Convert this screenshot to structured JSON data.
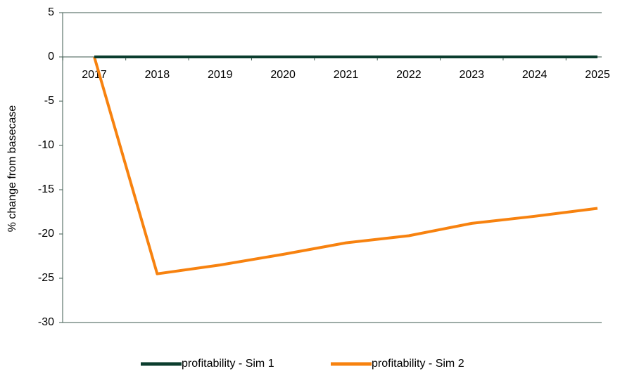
{
  "chart_data": {
    "type": "line",
    "y_label": "% change from basecase",
    "categories": [
      "2017",
      "2018",
      "2019",
      "2020",
      "2021",
      "2022",
      "2023",
      "2024",
      "2025"
    ],
    "series": [
      {
        "name": "profitability  - Sim 1",
        "color": "#0b3d2e",
        "values": [
          0,
          0,
          0,
          0,
          0,
          0,
          0,
          0,
          0
        ]
      },
      {
        "name": "profitability  - Sim 2",
        "color": "#f7820f",
        "values": [
          0,
          -24.5,
          -23.5,
          -22.3,
          -21.0,
          -20.2,
          -18.8,
          -18.0,
          -17.1
        ]
      }
    ],
    "ylim": [
      -30,
      5
    ],
    "yticks": [
      -30,
      -25,
      -20,
      -15,
      -10,
      -5,
      0,
      5
    ],
    "legend": "bottom"
  }
}
